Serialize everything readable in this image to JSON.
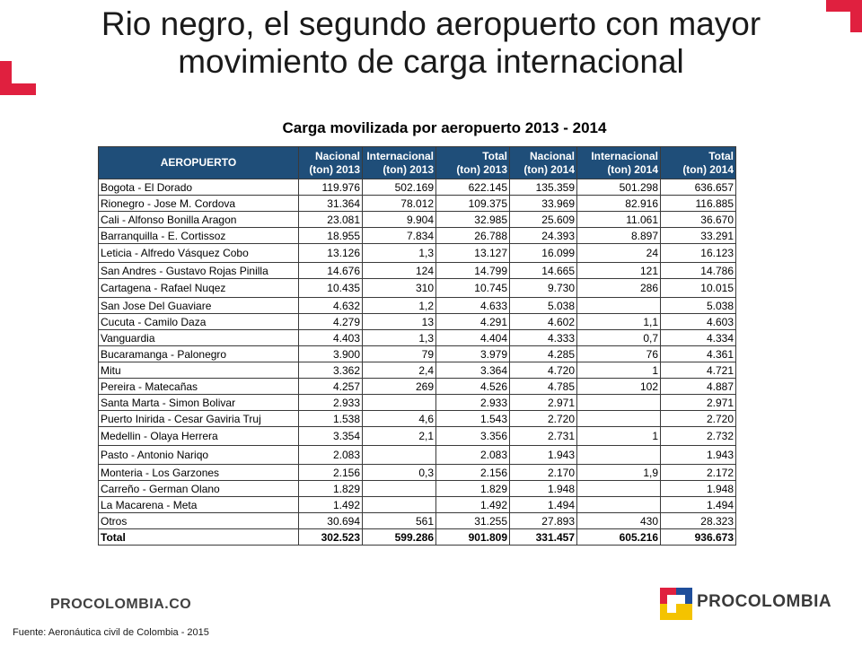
{
  "title_line1": "Rio negro, el segundo aeropuerto con mayor",
  "title_line2": "movimiento de carga internacional",
  "subtitle": "Carga movilizada por aeropuerto 2013 - 2014",
  "table": {
    "headers": [
      [
        "AEROPUERTO"
      ],
      [
        "Nacional",
        "(ton) 2013"
      ],
      [
        "Internacional",
        "(ton) 2013"
      ],
      [
        "Total",
        "(ton) 2013"
      ],
      [
        "Nacional",
        "(ton) 2014"
      ],
      [
        "Internacional",
        "(ton) 2014"
      ],
      [
        "Total",
        "(ton) 2014"
      ]
    ],
    "rows": [
      [
        "Bogota - El Dorado",
        "119.976",
        "502.169",
        "622.145",
        "135.359",
        "501.298",
        "636.657"
      ],
      [
        "Rionegro - Jose M. Cordova",
        "31.364",
        "78.012",
        "109.375",
        "33.969",
        "82.916",
        "116.885"
      ],
      [
        "Cali - Alfonso Bonilla Aragon",
        "23.081",
        "9.904",
        "32.985",
        "25.609",
        "11.061",
        "36.670"
      ],
      [
        "Barranquilla - E. Cortissoz",
        "18.955",
        "7.834",
        "26.788",
        "24.393",
        "8.897",
        "33.291"
      ],
      [
        "Leticia - Alfredo Vásquez Cobo",
        "13.126",
        "1,3",
        "13.127",
        "16.099",
        "24",
        "16.123"
      ],
      [
        "San Andres - Gustavo Rojas Pinilla",
        "14.676",
        "124",
        "14.799",
        "14.665",
        "121",
        "14.786"
      ],
      [
        "Cartagena - Rafael Nuqez",
        "10.435",
        "310",
        "10.745",
        "9.730",
        "286",
        "10.015"
      ],
      [
        "San Jose Del Guaviare",
        "4.632",
        "1,2",
        "4.633",
        "5.038",
        "",
        "5.038"
      ],
      [
        "Cucuta - Camilo Daza",
        "4.279",
        "13",
        "4.291",
        "4.602",
        "1,1",
        "4.603"
      ],
      [
        "Vanguardia",
        "4.403",
        "1,3",
        "4.404",
        "4.333",
        "0,7",
        "4.334"
      ],
      [
        "Bucaramanga - Palonegro",
        "3.900",
        "79",
        "3.979",
        "4.285",
        "76",
        "4.361"
      ],
      [
        "Mitu",
        "3.362",
        "2,4",
        "3.364",
        "4.720",
        "1",
        "4.721"
      ],
      [
        "Pereira - Matecañas",
        "4.257",
        "269",
        "4.526",
        "4.785",
        "102",
        "4.887"
      ],
      [
        "Santa Marta - Simon Bolivar",
        "2.933",
        "",
        "2.933",
        "2.971",
        "",
        "2.971"
      ],
      [
        "Puerto Inirida - Cesar Gaviria Truj",
        "1.538",
        "4,6",
        "1.543",
        "2.720",
        "",
        "2.720"
      ],
      [
        "Medellin - Olaya Herrera",
        "3.354",
        "2,1",
        "3.356",
        "2.731",
        "1",
        "2.732"
      ],
      [
        "Pasto - Antonio Nariqo",
        "2.083",
        "",
        "2.083",
        "1.943",
        "",
        "1.943"
      ],
      [
        "Monteria - Los Garzones",
        "2.156",
        "0,3",
        "2.156",
        "2.170",
        "1,9",
        "2.172"
      ],
      [
        "Carreño - German Olano",
        "1.829",
        "",
        "1.829",
        "1.948",
        "",
        "1.948"
      ],
      [
        "La Macarena - Meta",
        "1.492",
        "",
        "1.492",
        "1.494",
        "",
        "1.494"
      ],
      [
        "Otros",
        "30.694",
        "561",
        "31.255",
        "27.893",
        "430",
        "28.323"
      ],
      [
        "Total",
        "302.523",
        "599.286",
        "901.809",
        "331.457",
        "605.216",
        "936.673"
      ]
    ]
  },
  "brand_left": "PROCOLOMBIA.CO",
  "brand_right": "PROCOLOMBIA",
  "source_text": "Fuente:  Aeronáutica civil de Colombia - 2015",
  "colors": {
    "header_bg": "#1f4e79",
    "accent_red": "#e0203f",
    "logo_yellow": "#f4c300",
    "logo_blue": "#1f4e9a",
    "logo_red": "#e0203f"
  }
}
